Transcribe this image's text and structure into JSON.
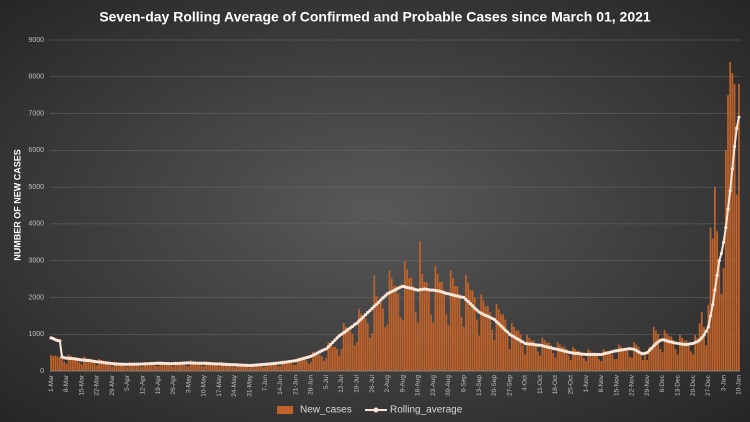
{
  "chart_data": {
    "type": "bar",
    "title": "Seven-day Rolling Average of Confirmed and Probable Cases since March 01, 2021",
    "y_label": "NUMBER OF NEW CASES",
    "ylim": [
      0,
      9000
    ],
    "yticks": [
      0,
      1000,
      2000,
      3000,
      4000,
      5000,
      6000,
      7000,
      8000,
      9000
    ],
    "grid": true,
    "legend": "bottom",
    "categories": [
      "1-Mar",
      null,
      null,
      null,
      null,
      null,
      null,
      "8-Mar",
      null,
      null,
      null,
      null,
      null,
      null,
      "15-Mar",
      null,
      null,
      null,
      null,
      null,
      null,
      "22-Mar",
      null,
      null,
      null,
      null,
      null,
      null,
      "29-Mar",
      null,
      null,
      null,
      null,
      null,
      null,
      "5-Apr",
      null,
      null,
      null,
      null,
      null,
      null,
      "12-Apr",
      null,
      null,
      null,
      null,
      null,
      null,
      "19-Apr",
      null,
      null,
      null,
      null,
      null,
      null,
      "26-Apr",
      null,
      null,
      null,
      null,
      null,
      null,
      "3-May",
      null,
      null,
      null,
      null,
      null,
      null,
      "10-May",
      null,
      null,
      null,
      null,
      null,
      null,
      "17-May",
      null,
      null,
      null,
      null,
      null,
      null,
      "24-May",
      null,
      null,
      null,
      null,
      null,
      null,
      "31-May",
      null,
      null,
      null,
      null,
      null,
      null,
      "7-Jun",
      null,
      null,
      null,
      null,
      null,
      null,
      "14-Jun",
      null,
      null,
      null,
      null,
      null,
      null,
      "21-Jun",
      null,
      null,
      null,
      null,
      null,
      null,
      "28-Jun",
      null,
      null,
      null,
      null,
      null,
      null,
      "5-Jul",
      null,
      null,
      null,
      null,
      null,
      null,
      "12-Jul",
      null,
      null,
      null,
      null,
      null,
      null,
      "19-Jul",
      null,
      null,
      null,
      null,
      null,
      null,
      "26-Jul",
      null,
      null,
      null,
      null,
      null,
      null,
      "2-Aug",
      null,
      null,
      null,
      null,
      null,
      null,
      "9-Aug",
      null,
      null,
      null,
      null,
      null,
      null,
      "16-Aug",
      null,
      null,
      null,
      null,
      null,
      null,
      "23-Aug",
      null,
      null,
      null,
      null,
      null,
      null,
      "30-Aug",
      null,
      null,
      null,
      null,
      null,
      null,
      "6-Sep",
      null,
      null,
      null,
      null,
      null,
      null,
      "13-Sep",
      null,
      null,
      null,
      null,
      null,
      null,
      "20-Sep",
      null,
      null,
      null,
      null,
      null,
      null,
      "27-Sep",
      null,
      null,
      null,
      null,
      null,
      null,
      "4-Oct",
      null,
      null,
      null,
      null,
      null,
      null,
      "11-Oct",
      null,
      null,
      null,
      null,
      null,
      null,
      "18-Oct",
      null,
      null,
      null,
      null,
      null,
      null,
      "25-Oct",
      null,
      null,
      null,
      null,
      null,
      null,
      "1-Nov",
      null,
      null,
      null,
      null,
      null,
      null,
      "8-Nov",
      null,
      null,
      null,
      null,
      null,
      null,
      "15-Nov",
      null,
      null,
      null,
      null,
      null,
      null,
      "22-Nov",
      null,
      null,
      null,
      null,
      null,
      null,
      "29-Nov",
      null,
      null,
      null,
      null,
      null,
      null,
      "6-Dec",
      null,
      null,
      null,
      null,
      null,
      null,
      "13-Dec",
      null,
      null,
      null,
      null,
      null,
      null,
      "20-Dec",
      null,
      null,
      null,
      null,
      null,
      null,
      "27-Dec",
      null,
      null,
      null,
      null,
      null,
      null,
      "3-Jan",
      null,
      null,
      null,
      null,
      null,
      null,
      "10-Jan"
    ],
    "series": [
      {
        "name": "New_cases",
        "color": "#c0622a",
        "type": "bar",
        "values": [
          430,
          410,
          420,
          390,
          380,
          330,
          260,
          200,
          450,
          420,
          380,
          380,
          350,
          240,
          180,
          390,
          360,
          330,
          330,
          300,
          210,
          150,
          330,
          300,
          280,
          270,
          250,
          170,
          120,
          260,
          240,
          220,
          220,
          200,
          140,
          110,
          240,
          220,
          200,
          200,
          190,
          130,
          115,
          250,
          230,
          210,
          210,
          200,
          140,
          125,
          270,
          250,
          230,
          230,
          210,
          150,
          120,
          260,
          240,
          220,
          220,
          200,
          140,
          130,
          290,
          260,
          240,
          240,
          220,
          150,
          125,
          270,
          250,
          230,
          230,
          210,
          150,
          115,
          250,
          230,
          210,
          210,
          190,
          130,
          100,
          220,
          200,
          190,
          190,
          170,
          120,
          90,
          200,
          180,
          170,
          170,
          150,
          100,
          110,
          230,
          220,
          200,
          200,
          180,
          130,
          130,
          290,
          260,
          240,
          240,
          220,
          160,
          170,
          360,
          340,
          310,
          310,
          280,
          200,
          240,
          520,
          480,
          440,
          440,
          400,
          280,
          360,
          780,
          720,
          660,
          660,
          600,
          420,
          600,
          1300,
          1200,
          1100,
          1100,
          1000,
          700,
          780,
          1690,
          1560,
          1430,
          1430,
          1300,
          910,
          1020,
          2600,
          2040,
          1870,
          1870,
          1700,
          1190,
          1260,
          2730,
          2520,
          2310,
          2310,
          2100,
          1470,
          1380,
          2990,
          2760,
          2530,
          2530,
          2300,
          1610,
          1320,
          3520,
          2640,
          2420,
          2420,
          2200,
          1540,
          1320,
          2860,
          2640,
          2420,
          2420,
          2200,
          1540,
          1260,
          2730,
          2520,
          2310,
          2310,
          2100,
          1470,
          1200,
          2600,
          2400,
          2200,
          2200,
          2000,
          1400,
          960,
          2080,
          1920,
          1760,
          1760,
          1600,
          1120,
          840,
          1820,
          1680,
          1540,
          1540,
          1400,
          980,
          600,
          1300,
          1200,
          1100,
          1100,
          1000,
          700,
          450,
          980,
          900,
          830,
          830,
          750,
          530,
          420,
          910,
          840,
          770,
          770,
          700,
          490,
          360,
          780,
          720,
          660,
          660,
          600,
          420,
          300,
          650,
          600,
          550,
          550,
          500,
          350,
          270,
          590,
          540,
          500,
          500,
          450,
          320,
          270,
          590,
          540,
          500,
          500,
          450,
          320,
          330,
          720,
          660,
          610,
          610,
          550,
          390,
          360,
          780,
          720,
          660,
          500,
          300,
          420,
          300,
          650,
          600,
          1200,
          1100,
          1000,
          600,
          510,
          1110,
          1020,
          940,
          940,
          850,
          600,
          450,
          980,
          900,
          830,
          830,
          750,
          530,
          450,
          980,
          900,
          1300,
          1600,
          1200,
          700,
          1800,
          3900,
          3600,
          5000,
          3800,
          3000,
          2100,
          2800,
          6000,
          7500,
          8400,
          8100,
          7800,
          4800,
          7800
        ]
      },
      {
        "name": "Rolling_average",
        "color": "#fbe5d6",
        "type": "line",
        "values": [
          900,
          880,
          850,
          830,
          820,
          380,
          360,
          350,
          345,
          340,
          335,
          330,
          320,
          310,
          300,
          295,
          290,
          285,
          280,
          270,
          260,
          250,
          245,
          240,
          230,
          220,
          215,
          210,
          200,
          195,
          190,
          188,
          185,
          183,
          182,
          180,
          182,
          184,
          185,
          186,
          188,
          189,
          190,
          193,
          196,
          200,
          203,
          206,
          208,
          210,
          209,
          208,
          206,
          204,
          202,
          201,
          200,
          203,
          206,
          209,
          212,
          215,
          218,
          220,
          218,
          217,
          215,
          213,
          212,
          211,
          210,
          207,
          204,
          201,
          198,
          195,
          192,
          190,
          187,
          184,
          181,
          178,
          175,
          172,
          170,
          167,
          164,
          161,
          158,
          155,
          152,
          150,
          154,
          158,
          163,
          168,
          173,
          177,
          180,
          186,
          192,
          198,
          204,
          210,
          216,
          220,
          228,
          237,
          246,
          255,
          264,
          272,
          280,
          297,
          314,
          331,
          348,
          365,
          382,
          400,
          430,
          460,
          490,
          520,
          550,
          580,
          600,
          660,
          720,
          780,
          840,
          900,
          960,
          1000,
          1040,
          1080,
          1130,
          1170,
          1210,
          1260,
          1300,
          1360,
          1410,
          1470,
          1530,
          1590,
          1640,
          1700,
          1760,
          1810,
          1870,
          1930,
          1990,
          2040,
          2100,
          2130,
          2160,
          2190,
          2220,
          2250,
          2280,
          2300,
          2290,
          2270,
          2260,
          2250,
          2230,
          2210,
          2200,
          2210,
          2220,
          2230,
          2220,
          2210,
          2200,
          2200,
          2190,
          2180,
          2170,
          2150,
          2130,
          2110,
          2100,
          2080,
          2070,
          2050,
          2040,
          2020,
          2010,
          2000,
          1940,
          1890,
          1830,
          1770,
          1710,
          1660,
          1600,
          1570,
          1540,
          1510,
          1490,
          1460,
          1430,
          1400,
          1340,
          1290,
          1230,
          1170,
          1110,
          1060,
          1000,
          960,
          930,
          890,
          860,
          820,
          790,
          750,
          740,
          730,
          730,
          720,
          710,
          705,
          700,
          690,
          670,
          660,
          640,
          630,
          610,
          600,
          590,
          570,
          560,
          540,
          530,
          510,
          500,
          490,
          480,
          480,
          470,
          460,
          455,
          450,
          450,
          450,
          450,
          450,
          450,
          450,
          450,
          465,
          480,
          495,
          510,
          525,
          540,
          550,
          560,
          570,
          580,
          590,
          600,
          605,
          600,
          590,
          560,
          520,
          490,
          470,
          480,
          500,
          560,
          620,
          680,
          740,
          790,
          830,
          850,
          840,
          820,
          800,
          790,
          770,
          760,
          750,
          740,
          730,
          720,
          720,
          730,
          740,
          750,
          780,
          800,
          840,
          900,
          980,
          1080,
          1200,
          1500,
          1800,
          2200,
          2600,
          3000,
          3200,
          3500,
          3900,
          4400,
          4900,
          5500,
          6100,
          6600,
          6900
        ]
      }
    ]
  }
}
